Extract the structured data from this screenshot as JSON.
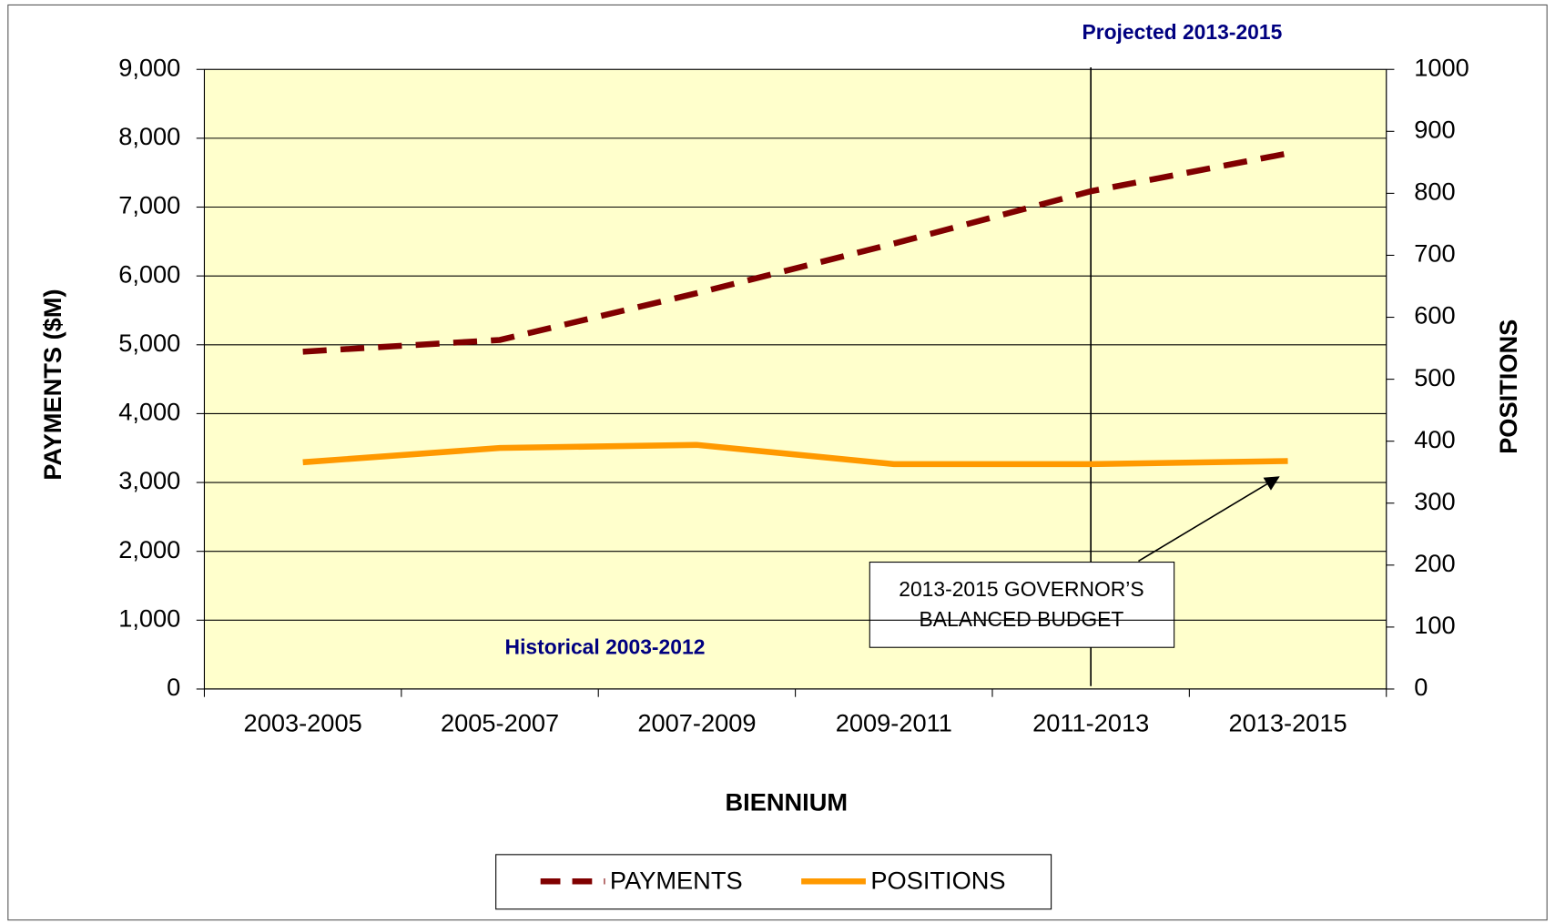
{
  "chart_data": {
    "type": "line",
    "xlabel": "BIENNIUM",
    "ylabel": "PAYMENTS ($M)",
    "y2label": "POSITIONS",
    "categories": [
      "2003-2005",
      "2005-2007",
      "2007-2009",
      "2009-2011",
      "2011-2013",
      "2013-2015"
    ],
    "series": [
      {
        "name": "PAYMENTS",
        "color": "#800000",
        "dashed": true,
        "values": [
          4900,
          5070,
          5750,
          6470,
          7230,
          7780
        ]
      },
      {
        "name": "POSITIONS",
        "color": "#FF9900",
        "axis": "y2",
        "values": [
          366,
          389,
          394,
          363,
          363,
          368
        ]
      }
    ],
    "ylim": [
      0,
      9000
    ],
    "yticks": [
      {
        "value": 0,
        "label": "0"
      },
      {
        "value": 1000,
        "label": "1,000"
      },
      {
        "value": 2000,
        "label": "2,000"
      },
      {
        "value": 3000,
        "label": "3,000"
      },
      {
        "value": 4000,
        "label": "4,000"
      },
      {
        "value": 5000,
        "label": "5,000"
      },
      {
        "value": 6000,
        "label": "6,000"
      },
      {
        "value": 7000,
        "label": "7,000"
      },
      {
        "value": 8000,
        "label": "8,000"
      },
      {
        "value": 9000,
        "label": "9,000"
      }
    ],
    "y2lim": [
      0,
      1000
    ],
    "y2ticks": [
      0,
      100,
      200,
      300,
      400,
      500,
      600,
      700,
      800,
      900,
      1000
    ],
    "grid": true,
    "legend": "bottom",
    "annotations": {
      "projected": "Projected 2013-2015",
      "historical": "Historical 2003-2012",
      "callout": [
        "2013-2015 GOVERNOR’S",
        "BALANCED BUDGET"
      ]
    }
  }
}
